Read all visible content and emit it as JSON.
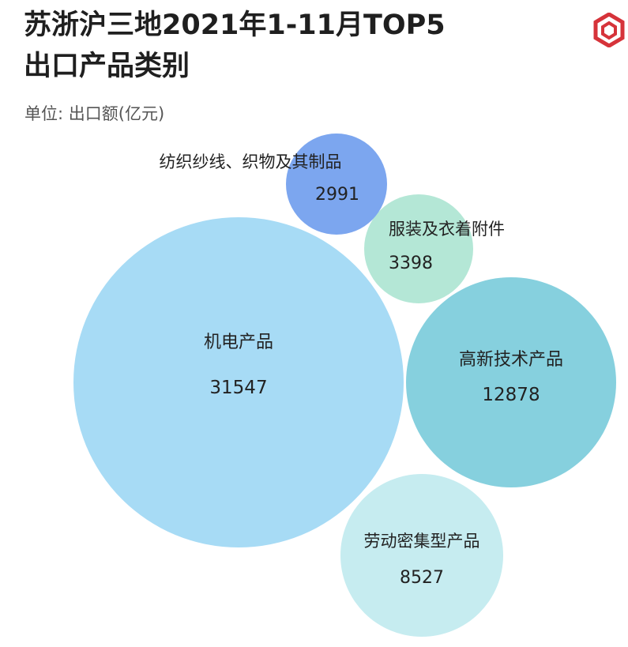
{
  "chart_title": {
    "line1": "苏浙沪三地2021年1-11月TOP5",
    "line2": "出口产品类别"
  },
  "unit_label": "单位: 出口额(亿元)",
  "logo_icon": "hexagon-cube-logo",
  "colors": {
    "logo": "#d6333a"
  },
  "chart_data": {
    "type": "bubble",
    "title": "苏浙沪三地2021年1-11月TOP5出口产品类别",
    "unit": "单位: 出口额(亿元)",
    "series": [
      {
        "name": "机电产品",
        "value": 31547,
        "color": "#a7dbf5"
      },
      {
        "name": "高新技术产品",
        "value": 12878,
        "color": "#86d0de"
      },
      {
        "name": "劳动密集型产品",
        "value": 8527,
        "color": "#c6ecf0"
      },
      {
        "name": "服装及衣着附件",
        "value": 3398,
        "color": "#b4e7d6"
      },
      {
        "name": "纺织纱线、织物及其制品",
        "value": 2991,
        "color": "#7ca6ef"
      }
    ]
  }
}
